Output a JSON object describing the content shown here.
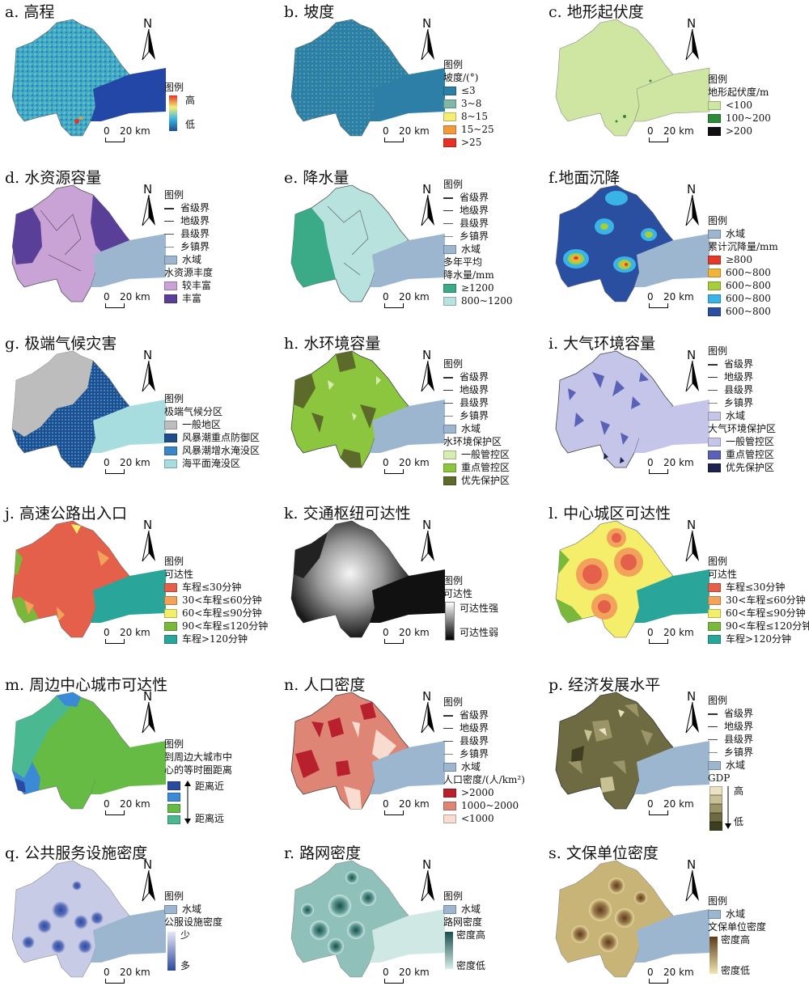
{
  "scale": {
    "zero": "0",
    "km": "20 km"
  },
  "north": "N",
  "colors": {
    "water": "#9db6cf",
    "outline": "#666666"
  },
  "panels": {
    "a": {
      "title": "a. 高程",
      "legend_title": "图例",
      "high": "高",
      "low": "低"
    },
    "b": {
      "title": "b. 坡度",
      "legend_title": "图例",
      "sub": "坡度/(°)",
      "items": [
        "≤3",
        "3~8",
        "8~15",
        "15~25",
        ">25"
      ],
      "colors": [
        "#2e7fa8",
        "#7fb8a8",
        "#f3ee74",
        "#f39b3c",
        "#e53224"
      ]
    },
    "c": {
      "title": "c. 地形起伏度",
      "legend_title": "图例",
      "sub": "地形起伏度/m",
      "items": [
        "<100",
        "100~200",
        ">200"
      ],
      "colors": [
        "#cfe6a3",
        "#2e8b3a",
        "#111111"
      ]
    },
    "d": {
      "title": "d. 水资源容量",
      "legend_title": "图例",
      "lines": [
        "省级界",
        "地级界",
        "县级界",
        "乡镇界"
      ],
      "water": "水域",
      "sub": "水资源丰度",
      "items": [
        "较丰富",
        "丰富"
      ],
      "colors": [
        "#c9a3d6",
        "#5a3f98"
      ]
    },
    "e": {
      "title": "e. 降水量",
      "legend_title": "图例",
      "lines": [
        "省级界",
        "地级界",
        "县级界",
        "乡镇界"
      ],
      "water": "水域",
      "sub1": "多年平均",
      "sub2": "降水量/mm",
      "items": [
        "≥1200",
        "800~1200"
      ],
      "colors": [
        "#3aab86",
        "#b8e2de"
      ]
    },
    "f": {
      "title": "f.地面沉降",
      "legend_title": "图例",
      "water": "水域",
      "sub": "累计沉降量/mm",
      "items": [
        "≥800",
        "600~800",
        "600~800",
        "600~800",
        "600~800"
      ],
      "colors": [
        "#e33a2a",
        "#f0b43a",
        "#a6cd3a",
        "#3ab3e6",
        "#2a4ea0"
      ]
    },
    "g": {
      "title": "g. 极端气候灾害",
      "legend_title": "图例",
      "sub": "极端气候分区",
      "items": [
        "一般地区",
        "风暴潮重点防御区",
        "风暴潮增水淹没区",
        "海平面淹没区"
      ],
      "colors": [
        "#bdbdbd",
        "#1f4e8c",
        "#3a86c8",
        "#a8dde0"
      ]
    },
    "h": {
      "title": "h. 水环境容量",
      "legend_title": "图例",
      "lines": [
        "省级界",
        "地级界",
        "县级界",
        "乡镇界"
      ],
      "water": "水域",
      "sub": "水环境保护区",
      "items": [
        "一般管控区",
        "重点管控区",
        "优先保护区"
      ],
      "colors": [
        "#d7ecb0",
        "#8cc63f",
        "#5c6a2a"
      ]
    },
    "i": {
      "title": "i. 大气环境容量",
      "legend_title": "图例",
      "lines": [
        "省级界",
        "地级界",
        "县级界",
        "乡镇界"
      ],
      "water": "水域",
      "sub": "大气环境保护区",
      "items": [
        "一般管控区",
        "重点管控区",
        "优先保护区"
      ],
      "colors": [
        "#c5c5ea",
        "#5a62b8",
        "#1d2250"
      ]
    },
    "j": {
      "title": "j. 高速公路出入口",
      "legend_title": "图例",
      "sub": "可达性",
      "items": [
        "车程≤30分钟",
        "30<车程≤60分钟",
        "60<车程≤90分钟",
        "90<车程≤120分钟",
        "车程>120分钟"
      ],
      "colors": [
        "#e4604a",
        "#f2a25a",
        "#f4ee6a",
        "#79b83a",
        "#2aa59a"
      ]
    },
    "k": {
      "title": "k. 交通枢纽可达性",
      "legend_title": "图例",
      "sub": "可达性",
      "high": "可达性强",
      "low": "可达性弱"
    },
    "l": {
      "title": "l. 中心城区可达性",
      "legend_title": "图例",
      "sub": "可达性",
      "items": [
        "车程≤30分钟",
        "30<车程≤60分钟",
        "60<车程≤90分钟",
        "90<车程≤120分钟",
        "车程>120分钟"
      ],
      "colors": [
        "#e4604a",
        "#f2a25a",
        "#f4ee6a",
        "#79b83a",
        "#2aa59a"
      ]
    },
    "m": {
      "title": "m. 周边中心城市可达性",
      "legend_title": "图例",
      "sub1": "到周边大城市中",
      "sub2": "心的等时圈距离",
      "near": "距离近",
      "far": "距离远",
      "colors": [
        "#2a4aa0",
        "#3a8ad8",
        "#66bb44",
        "#4ab890"
      ]
    },
    "n": {
      "title": "n. 人口密度",
      "legend_title": "图例",
      "lines": [
        "省级界",
        "地级界",
        "县级界",
        "乡镇界"
      ],
      "water": "水域",
      "sub": "人口密度/(人/km²)",
      "items": [
        ">2000",
        "1000~2000",
        "<1000"
      ],
      "colors": [
        "#b8202e",
        "#de8575",
        "#f8dccf"
      ]
    },
    "p": {
      "title": "p. 经济发展水平",
      "legend_title": "图例",
      "lines": [
        "省级界",
        "地级界",
        "县级界",
        "乡镇界"
      ],
      "water": "水域",
      "sub": "GDP",
      "high": "高",
      "low": "低",
      "colors": [
        "#eae2c2",
        "#c7c195",
        "#9a9466",
        "#6e6b43",
        "#3e3e22"
      ]
    },
    "q": {
      "title": "q. 公共服务设施密度",
      "legend_title": "图例",
      "water": "水域",
      "sub": "公服设施密度",
      "high": "少",
      "low": "多"
    },
    "r": {
      "title": "r. 路网密度",
      "legend_title": "图例",
      "water": "水域",
      "sub": "路网密度",
      "high": "密度高",
      "low": "密度低"
    },
    "s": {
      "title": "s. 文保单位密度",
      "legend_title": "图例",
      "water": "水域",
      "sub": "文保单位密度",
      "high": "密度高",
      "low": "密度低"
    }
  }
}
